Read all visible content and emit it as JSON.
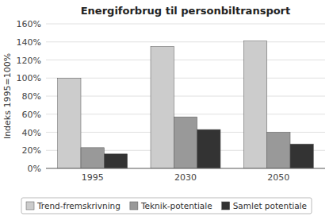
{
  "chart_data": {
    "type": "bar",
    "title": "Energiforbrug til personbiltransport",
    "ylabel": "Indeks 1995=100%",
    "categories": [
      "1995",
      "2030",
      "2050"
    ],
    "series": [
      {
        "name": "Trend-fremskrivning",
        "color": "#cccccc",
        "values": [
          100,
          135,
          141
        ]
      },
      {
        "name": "Teknik-potentiale",
        "color": "#999999",
        "values": [
          23,
          57,
          40
        ]
      },
      {
        "name": "Samlet potentiale",
        "color": "#333333",
        "values": [
          16,
          43,
          27
        ]
      }
    ],
    "ylim": [
      0,
      160
    ],
    "yticks": [
      {
        "value": 0,
        "label": "0%"
      },
      {
        "value": 20,
        "label": "20%"
      },
      {
        "value": 40,
        "label": "40%"
      },
      {
        "value": 60,
        "label": "60%"
      },
      {
        "value": 80,
        "label": "80%"
      },
      {
        "value": 100,
        "label": "100%"
      },
      {
        "value": 120,
        "label": "120%"
      },
      {
        "value": 140,
        "label": "140%"
      },
      {
        "value": 160,
        "label": "160%"
      }
    ],
    "grid": true,
    "legend": "bottom"
  }
}
